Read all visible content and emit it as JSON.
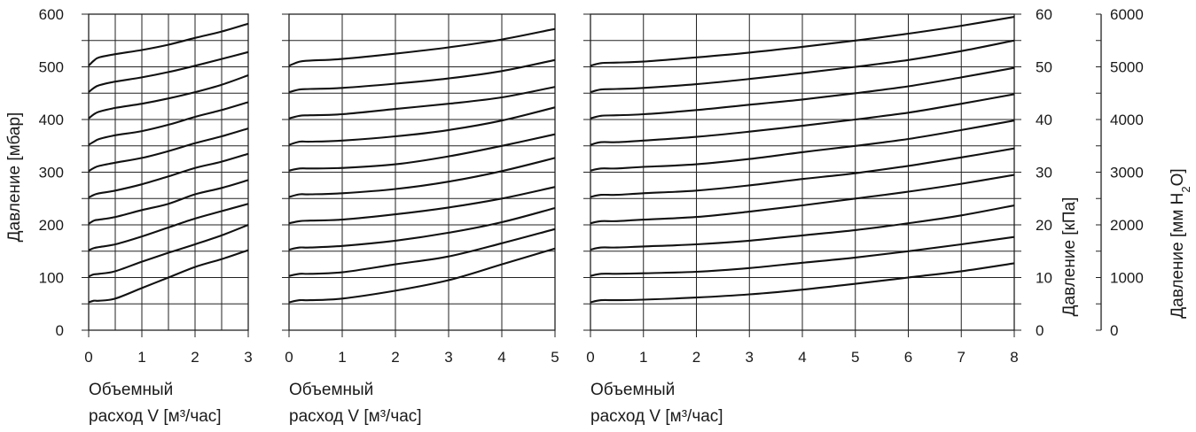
{
  "chart_data": [
    {
      "type": "line",
      "xlabel": "Объемный расход V [м³/час]",
      "xlabel_lines": [
        "Объемный",
        "расход  V [м³/час]"
      ],
      "ylabel": "Давление  [мбар]",
      "xlim": [
        0,
        3
      ],
      "ylim": [
        0,
        600
      ],
      "x_ticks": [
        "0",
        "1",
        "2",
        "3"
      ],
      "y_ticks": [
        "0",
        "100",
        "200",
        "300",
        "400",
        "500",
        "600"
      ],
      "grid": true,
      "series": [
        {
          "x": [
            0,
            0.1,
            0.2,
            0.5,
            1,
            1.5,
            2,
            2.5,
            3
          ],
          "y": [
            53,
            56,
            56,
            60,
            80,
            100,
            120,
            135,
            152
          ]
        },
        {
          "x": [
            0,
            0.1,
            0.2,
            0.5,
            1,
            1.5,
            2,
            2.5,
            3
          ],
          "y": [
            102,
            106,
            107,
            112,
            130,
            147,
            163,
            180,
            200
          ]
        },
        {
          "x": [
            0,
            0.1,
            0.2,
            0.5,
            1,
            1.5,
            2,
            2.5,
            3
          ],
          "y": [
            152,
            156,
            158,
            163,
            178,
            195,
            212,
            226,
            240
          ]
        },
        {
          "x": [
            0,
            0.1,
            0.2,
            0.5,
            1,
            1.5,
            2,
            2.5,
            3
          ],
          "y": [
            202,
            208,
            210,
            215,
            228,
            240,
            258,
            270,
            285
          ]
        },
        {
          "x": [
            0,
            0.1,
            0.2,
            0.5,
            1,
            1.5,
            2,
            2.5,
            3
          ],
          "y": [
            252,
            257,
            260,
            265,
            277,
            292,
            308,
            320,
            335
          ]
        },
        {
          "x": [
            0,
            0.1,
            0.2,
            0.5,
            1,
            1.5,
            2,
            2.5,
            3
          ],
          "y": [
            302,
            308,
            312,
            318,
            327,
            340,
            355,
            368,
            383
          ]
        },
        {
          "x": [
            0,
            0.1,
            0.2,
            0.5,
            1,
            1.5,
            2,
            2.5,
            3
          ],
          "y": [
            352,
            358,
            363,
            370,
            378,
            390,
            405,
            418,
            433
          ]
        },
        {
          "x": [
            0,
            0.1,
            0.2,
            0.5,
            1,
            1.5,
            2,
            2.5,
            3
          ],
          "y": [
            402,
            410,
            415,
            422,
            430,
            440,
            452,
            466,
            484
          ]
        },
        {
          "x": [
            0,
            0.1,
            0.2,
            0.5,
            1,
            1.5,
            2,
            2.5,
            3
          ],
          "y": [
            452,
            460,
            465,
            472,
            480,
            490,
            502,
            515,
            528
          ]
        },
        {
          "x": [
            0,
            0.1,
            0.2,
            0.5,
            1,
            1.5,
            2,
            2.5,
            3
          ],
          "y": [
            502,
            512,
            518,
            524,
            532,
            542,
            555,
            567,
            582
          ]
        }
      ]
    },
    {
      "type": "line",
      "xlabel": "Объемный расход V [м³/час]",
      "xlabel_lines": [
        "Объемный",
        "расход  V [м³/час]"
      ],
      "xlim": [
        0,
        5
      ],
      "ylim": [
        0,
        600
      ],
      "x_ticks": [
        "0",
        "1",
        "2",
        "3",
        "4",
        "5"
      ],
      "grid": true,
      "series": [
        {
          "x": [
            0,
            0.2,
            0.4,
            1,
            2,
            3,
            4,
            5
          ],
          "y": [
            53,
            57,
            57,
            60,
            75,
            95,
            125,
            155
          ]
        },
        {
          "x": [
            0,
            0.2,
            0.4,
            1,
            2,
            3,
            4,
            5
          ],
          "y": [
            103,
            107,
            107,
            110,
            125,
            140,
            165,
            192
          ]
        },
        {
          "x": [
            0,
            0.2,
            0.4,
            1,
            2,
            3,
            4,
            5
          ],
          "y": [
            153,
            157,
            157,
            160,
            170,
            185,
            205,
            232
          ]
        },
        {
          "x": [
            0,
            0.2,
            0.4,
            1,
            2,
            3,
            4,
            5
          ],
          "y": [
            203,
            207,
            208,
            210,
            220,
            233,
            250,
            272
          ]
        },
        {
          "x": [
            0,
            0.2,
            0.4,
            1,
            2,
            3,
            4,
            5
          ],
          "y": [
            253,
            258,
            258,
            260,
            268,
            282,
            302,
            327
          ]
        },
        {
          "x": [
            0,
            0.2,
            0.4,
            1,
            2,
            3,
            4,
            5
          ],
          "y": [
            303,
            307,
            307,
            308,
            315,
            330,
            350,
            372
          ]
        },
        {
          "x": [
            0,
            0.2,
            0.4,
            1,
            2,
            3,
            4,
            5
          ],
          "y": [
            352,
            358,
            358,
            360,
            368,
            380,
            398,
            423
          ]
        },
        {
          "x": [
            0,
            0.2,
            0.4,
            1,
            2,
            3,
            4,
            5
          ],
          "y": [
            402,
            407,
            408,
            410,
            420,
            430,
            442,
            462
          ]
        },
        {
          "x": [
            0,
            0.2,
            0.4,
            1,
            2,
            3,
            4,
            5
          ],
          "y": [
            452,
            457,
            458,
            460,
            468,
            478,
            492,
            513
          ]
        },
        {
          "x": [
            0,
            0.2,
            0.4,
            1,
            2,
            3,
            4,
            5
          ],
          "y": [
            502,
            510,
            512,
            515,
            525,
            537,
            552,
            572
          ]
        }
      ]
    },
    {
      "type": "line",
      "xlabel": "Объемный расход V [м³/час]",
      "xlabel_lines": [
        "Объемный",
        "расход  V [м³/час]"
      ],
      "xlim": [
        0,
        8
      ],
      "ylim": [
        0,
        600
      ],
      "x_ticks": [
        "0",
        "1",
        "2",
        "3",
        "4",
        "5",
        "6",
        "7",
        "8"
      ],
      "grid": true,
      "secondary_axes": [
        {
          "label": "Давление  [кПа]",
          "ticks": [
            "0",
            "10",
            "20",
            "30",
            "40",
            "50",
            "60"
          ],
          "range": [
            0,
            60
          ]
        },
        {
          "label": "Давление  [мм H₂O]",
          "label_parts": [
            "Давление  [мм H",
            "2",
            "O]"
          ],
          "ticks": [
            "0",
            "1000",
            "2000",
            "3000",
            "4000",
            "5000",
            "6000"
          ],
          "range": [
            0,
            6000
          ]
        }
      ],
      "series": [
        {
          "x": [
            0,
            0.2,
            0.5,
            1,
            2,
            3,
            4,
            5,
            6,
            7,
            8
          ],
          "y": [
            53,
            57,
            57,
            58,
            62,
            68,
            77,
            88,
            100,
            112,
            127
          ]
        },
        {
          "x": [
            0,
            0.2,
            0.5,
            1,
            2,
            3,
            4,
            5,
            6,
            7,
            8
          ],
          "y": [
            103,
            107,
            107,
            108,
            111,
            118,
            128,
            138,
            150,
            163,
            177
          ]
        },
        {
          "x": [
            0,
            0.2,
            0.5,
            1,
            2,
            3,
            4,
            5,
            6,
            7,
            8
          ],
          "y": [
            153,
            157,
            157,
            159,
            163,
            170,
            180,
            190,
            203,
            218,
            237
          ]
        },
        {
          "x": [
            0,
            0.2,
            0.5,
            1,
            2,
            3,
            4,
            5,
            6,
            7,
            8
          ],
          "y": [
            203,
            207,
            207,
            210,
            215,
            225,
            237,
            250,
            263,
            278,
            295
          ]
        },
        {
          "x": [
            0,
            0.2,
            0.5,
            1,
            2,
            3,
            4,
            5,
            6,
            7,
            8
          ],
          "y": [
            253,
            257,
            257,
            260,
            265,
            275,
            287,
            298,
            312,
            328,
            345
          ]
        },
        {
          "x": [
            0,
            0.2,
            0.5,
            1,
            2,
            3,
            4,
            5,
            6,
            7,
            8
          ],
          "y": [
            303,
            307,
            307,
            310,
            315,
            325,
            338,
            350,
            363,
            380,
            398
          ]
        },
        {
          "x": [
            0,
            0.2,
            0.5,
            1,
            2,
            3,
            4,
            5,
            6,
            7,
            8
          ],
          "y": [
            352,
            357,
            357,
            360,
            367,
            377,
            388,
            400,
            413,
            430,
            448
          ]
        },
        {
          "x": [
            0,
            0.2,
            0.5,
            1,
            2,
            3,
            4,
            5,
            6,
            7,
            8
          ],
          "y": [
            402,
            407,
            408,
            410,
            418,
            428,
            438,
            450,
            463,
            480,
            498
          ]
        },
        {
          "x": [
            0,
            0.2,
            0.5,
            1,
            2,
            3,
            4,
            5,
            6,
            7,
            8
          ],
          "y": [
            452,
            457,
            458,
            460,
            467,
            477,
            488,
            500,
            513,
            530,
            550
          ]
        },
        {
          "x": [
            0,
            0.2,
            0.5,
            1,
            2,
            3,
            4,
            5,
            6,
            7,
            8
          ],
          "y": [
            502,
            507,
            508,
            510,
            518,
            527,
            538,
            550,
            563,
            578,
            595
          ]
        }
      ]
    }
  ]
}
